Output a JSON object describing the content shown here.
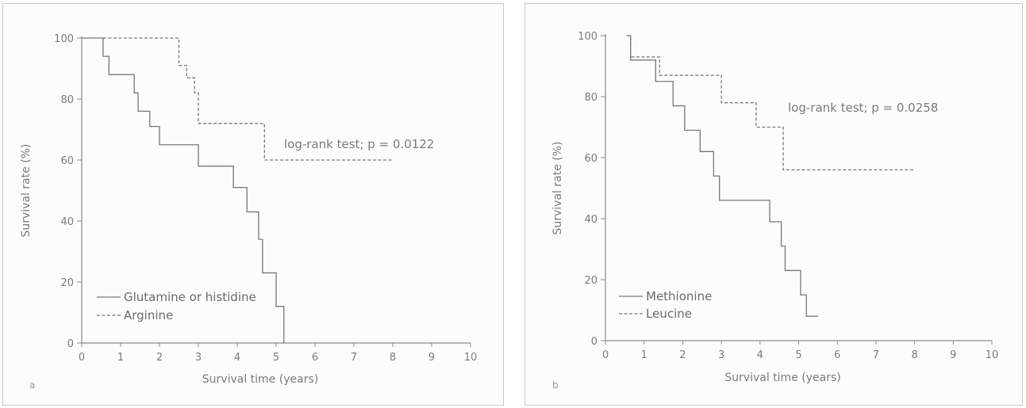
{
  "chart_data": [
    {
      "type": "line",
      "panel_label": "a",
      "xlabel": "Survival time (years)",
      "ylabel": "Survival rate (%)",
      "xlim": [
        0,
        10
      ],
      "ylim": [
        0,
        100
      ],
      "x_ticks": [
        0,
        1,
        2,
        3,
        4,
        5,
        6,
        7,
        8,
        9,
        10
      ],
      "y_ticks": [
        0,
        20,
        40,
        60,
        80,
        100
      ],
      "step": true,
      "annotation": "log-rank test; p = 0.0122",
      "legend_position": "bottom-left",
      "series": [
        {
          "name": "Glutamine or histidine",
          "style": "solid",
          "color": "#777777",
          "x": [
            0,
            0.55,
            0.7,
            1.35,
            1.45,
            1.75,
            2.0,
            3.0,
            3.9,
            4.25,
            4.55,
            4.65,
            5.0,
            5.2,
            5.2
          ],
          "y": [
            100,
            94,
            88,
            82,
            76,
            71,
            65,
            58,
            51,
            43,
            34,
            23,
            12,
            0,
            0
          ]
        },
        {
          "name": "Arginine",
          "style": "dashed",
          "color": "#777777",
          "x": [
            0.55,
            2.5,
            2.7,
            2.9,
            3.0,
            4.7,
            8.0
          ],
          "y": [
            100,
            91,
            87,
            82,
            72,
            60,
            60
          ]
        }
      ]
    },
    {
      "type": "line",
      "panel_label": "b",
      "xlabel": "Survival time (years)",
      "ylabel": "Survival rate (%)",
      "xlim": [
        0,
        10
      ],
      "ylim": [
        0,
        100
      ],
      "x_ticks": [
        0,
        1,
        2,
        3,
        4,
        5,
        6,
        7,
        8,
        9,
        10
      ],
      "y_ticks": [
        0,
        20,
        40,
        60,
        80,
        100
      ],
      "step": true,
      "annotation": "log-rank test; p = 0.0258",
      "legend_position": "bottom-left",
      "series": [
        {
          "name": "Methionine",
          "style": "solid",
          "color": "#777777",
          "x": [
            0.55,
            0.65,
            1.3,
            1.75,
            2.05,
            2.45,
            2.8,
            2.95,
            4.25,
            4.55,
            4.65,
            5.05,
            5.2,
            5.5
          ],
          "y": [
            100,
            92,
            85,
            77,
            69,
            62,
            54,
            46,
            39,
            31,
            23,
            15,
            8,
            8
          ]
        },
        {
          "name": "Leucine",
          "style": "dashed",
          "color": "#777777",
          "x": [
            0.55,
            0.65,
            1.4,
            3.0,
            3.9,
            4.6,
            8.0
          ],
          "y": [
            100,
            93,
            87,
            78,
            70,
            56,
            56
          ]
        }
      ]
    }
  ]
}
